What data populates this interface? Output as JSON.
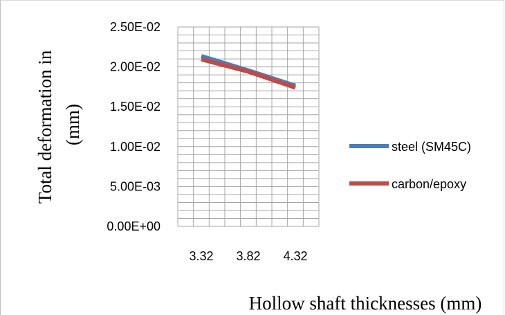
{
  "chart_data": {
    "type": "line",
    "title": "",
    "xlabel": "Hollow shaft thicknesses (mm)",
    "ylabel_line1": "Total deformation  in",
    "ylabel_line2": "(mm)",
    "categories": [
      "3.32",
      "3.82",
      "4.32"
    ],
    "y_ticks": [
      "0.00E+00",
      "5.00E-03",
      "1.00E-02",
      "1.50E-02",
      "2.00E-02",
      "2.50E-02"
    ],
    "ylim": [
      0,
      0.025
    ],
    "grid": true,
    "legend_position": "right",
    "series": [
      {
        "name": "steel (SM45C)",
        "color": "#4a7ebb",
        "values": [
          0.02135,
          0.01955,
          0.01765
        ]
      },
      {
        "name": "carbon/epoxy",
        "color": "#be4b48",
        "values": [
          0.02095,
          0.0194,
          0.0174
        ]
      }
    ]
  }
}
